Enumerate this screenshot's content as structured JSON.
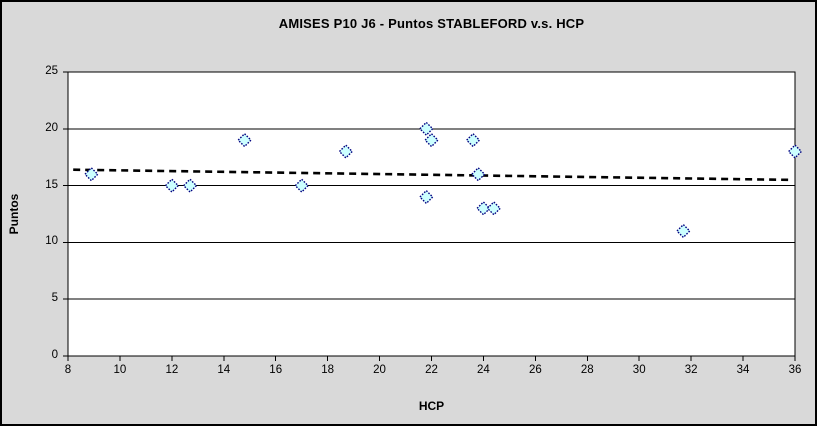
{
  "chart_data": {
    "type": "scatter",
    "title": "AMISES P10 J6 - Puntos STABLEFORD v.s. HCP",
    "xlabel": "HCP",
    "ylabel": "Puntos",
    "xlim": [
      8,
      36
    ],
    "ylim": [
      0,
      25
    ],
    "x_ticks": [
      8,
      10,
      12,
      14,
      16,
      18,
      20,
      22,
      24,
      26,
      28,
      30,
      32,
      34,
      36
    ],
    "y_ticks": [
      0,
      5,
      10,
      15,
      20,
      25
    ],
    "grid": "horizontal-only",
    "legend_position": "none",
    "series": [
      {
        "marker": "diamond",
        "marker_fill": "#ccffff",
        "marker_border": "#000080",
        "points": [
          [
            8.9,
            16
          ],
          [
            12,
            15
          ],
          [
            12.7,
            15
          ],
          [
            14.8,
            19
          ],
          [
            17,
            15
          ],
          [
            18.7,
            18
          ],
          [
            21.8,
            20
          ],
          [
            22,
            19
          ],
          [
            21.8,
            14
          ],
          [
            23.6,
            19
          ],
          [
            23.8,
            16
          ],
          [
            24,
            13
          ],
          [
            24.4,
            13
          ],
          [
            31.7,
            11
          ],
          [
            36,
            18
          ]
        ]
      }
    ],
    "trendline": {
      "style": "dashed",
      "color": "#000000",
      "x1": 8.2,
      "y1": 16.4,
      "x2": 35.9,
      "y2": 15.5
    }
  },
  "colors": {
    "chart_background": "#d9d9d9",
    "plot_background": "#ffffff",
    "axis_line": "#000000",
    "gridline": "#000000",
    "outer_border": "#000000"
  }
}
